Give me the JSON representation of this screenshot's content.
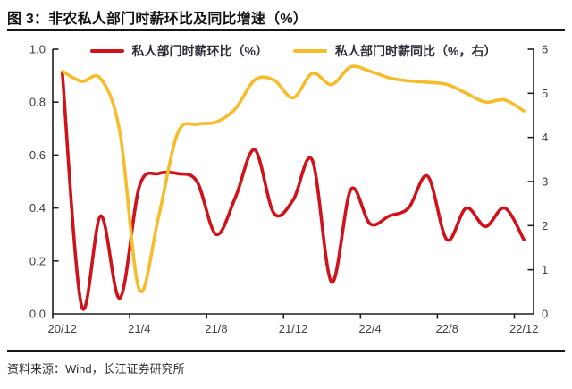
{
  "title": "图 3：非农私人部门时薪环比及同比增速（%）",
  "source": "资料来源：Wind，长江证券研究所",
  "colors": {
    "mom_line": "#d0121a",
    "yoy_line": "#f7bc2b",
    "axis": "#1f1f1f",
    "tick_label": "#3c3c48",
    "rule": "#161616"
  },
  "chart_data": {
    "type": "line",
    "smoothed": true,
    "grid": false,
    "legend_position": "top-center",
    "categories": [
      "20/12",
      "21/1",
      "21/2",
      "21/3",
      "21/4",
      "21/5",
      "21/6",
      "21/7",
      "21/8",
      "21/9",
      "21/10",
      "21/11",
      "21/12",
      "22/1",
      "22/2",
      "22/3",
      "22/4",
      "22/5",
      "22/6",
      "22/7",
      "22/8",
      "22/9",
      "22/10",
      "22/11",
      "22/12"
    ],
    "x_tick_labels": [
      "20/12",
      "21/4",
      "21/8",
      "21/12",
      "22/4",
      "22/8",
      "22/12"
    ],
    "left_axis": {
      "min": 0,
      "max": 1,
      "tick_labels": [
        "0.0",
        "0.2",
        "0.4",
        "0.6",
        "0.8",
        "1.0"
      ]
    },
    "right_axis": {
      "min": 0,
      "max": 6,
      "tick_labels": [
        "0",
        "1",
        "2",
        "3",
        "4",
        "5",
        "6"
      ]
    },
    "series": [
      {
        "id": "mom-line",
        "name": "私人部门时薪环比（%）",
        "axis": "left",
        "color": "#d0121a",
        "values": [
          0.91,
          0.03,
          0.37,
          0.06,
          0.48,
          0.53,
          0.53,
          0.5,
          0.3,
          0.44,
          0.62,
          0.38,
          0.43,
          0.58,
          0.12,
          0.47,
          0.34,
          0.37,
          0.4,
          0.52,
          0.28,
          0.4,
          0.33,
          0.4,
          0.28
        ]
      },
      {
        "id": "yoy-line",
        "name": "私人部门时薪同比（%，右）",
        "axis": "right",
        "color": "#f7bc2b",
        "values": [
          5.5,
          5.27,
          5.33,
          4.1,
          0.55,
          2.2,
          4.1,
          4.3,
          4.35,
          4.65,
          5.3,
          5.3,
          4.9,
          5.45,
          5.2,
          5.6,
          5.5,
          5.35,
          5.28,
          5.25,
          5.2,
          5.0,
          4.8,
          4.85,
          4.6
        ]
      }
    ]
  }
}
